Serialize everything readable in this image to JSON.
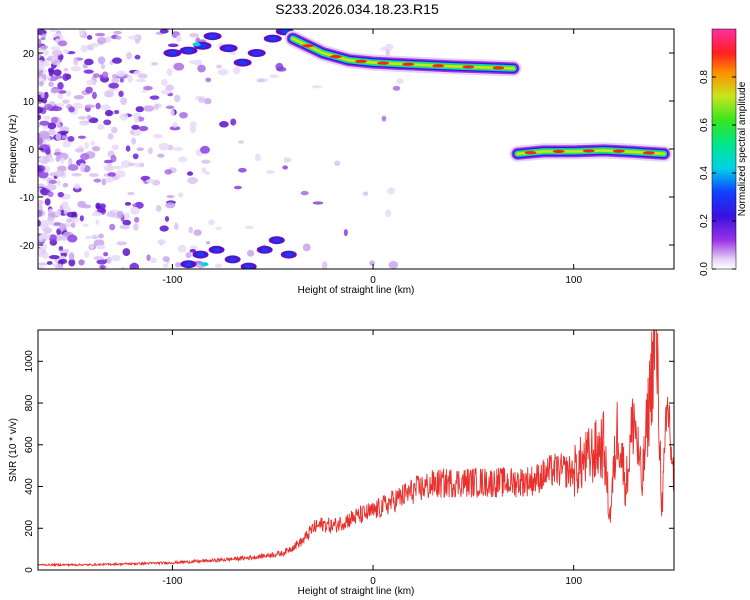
{
  "title": "S233.2026.034.18.23.R15",
  "chart_data": [
    {
      "type": "heatmap",
      "title": "S233.2026.034.18.23.R15",
      "xlabel": "Height of straight line (km)",
      "ylabel": "Frequency (Hz)",
      "xlim": [
        -167,
        150
      ],
      "ylim": [
        -25,
        25
      ],
      "xticks": [
        -100,
        0,
        100
      ],
      "yticks": [
        -20,
        -10,
        0,
        10,
        20
      ],
      "xtick_labels": [
        "-100",
        "0",
        "100"
      ],
      "ytick_labels": [
        "-20",
        "-10",
        "0",
        "10",
        "20"
      ],
      "colorbar": {
        "label": "Normalized spectral amplitude",
        "range": [
          0.0,
          1.0
        ],
        "ticks": [
          0.0,
          0.2,
          0.4,
          0.6,
          0.8
        ],
        "tick_labels": [
          "0.0",
          "0.2",
          "0.4",
          "0.6",
          "0.8"
        ]
      },
      "ridges": [
        {
          "name": "upper tone",
          "points": [
            [
              -40,
              23
            ],
            [
              -25,
              20
            ],
            [
              -12,
              18.5
            ],
            [
              0,
              18
            ],
            [
              10,
              17.8
            ],
            [
              25,
              17.5
            ],
            [
              40,
              17.2
            ],
            [
              55,
              17.0
            ],
            [
              70,
              16.8
            ]
          ]
        },
        {
          "name": "lower tone",
          "points": [
            [
              72,
              -1.0
            ],
            [
              85,
              -0.5
            ],
            [
              100,
              -0.5
            ],
            [
              115,
              -0.3
            ],
            [
              130,
              -0.6
            ],
            [
              145,
              -1.0
            ]
          ]
        }
      ]
    },
    {
      "type": "line",
      "xlabel": "Height of straight line (km)",
      "ylabel": "SNR (10 * v/v)",
      "xlim": [
        -167,
        150
      ],
      "ylim": [
        0,
        1150
      ],
      "xticks": [
        -100,
        0,
        100
      ],
      "yticks": [
        0,
        200,
        400,
        600,
        800,
        1000
      ],
      "xtick_labels": [
        "-100",
        "0",
        "100"
      ],
      "ytick_labels": [
        "0",
        "200",
        "400",
        "600",
        "800",
        "1000"
      ],
      "series": [
        {
          "name": "SNR",
          "color": "#e8302c",
          "x": [
            -167,
            -140,
            -120,
            -100,
            -80,
            -60,
            -45,
            -35,
            -30,
            -25,
            -20,
            -10,
            0,
            10,
            20,
            30,
            40,
            50,
            60,
            70,
            80,
            90,
            100,
            105,
            110,
            115,
            118,
            122,
            126,
            130,
            134,
            138,
            141,
            144,
            147,
            150
          ],
          "y": [
            25,
            25,
            30,
            35,
            45,
            60,
            80,
            140,
            200,
            220,
            210,
            250,
            280,
            330,
            380,
            410,
            420,
            420,
            420,
            420,
            430,
            480,
            470,
            520,
            560,
            600,
            250,
            700,
            400,
            750,
            400,
            850,
            1150,
            300,
            800,
            400
          ]
        }
      ]
    }
  ],
  "colors": {
    "snr_line": "#e8302c",
    "frame": "#000000"
  }
}
